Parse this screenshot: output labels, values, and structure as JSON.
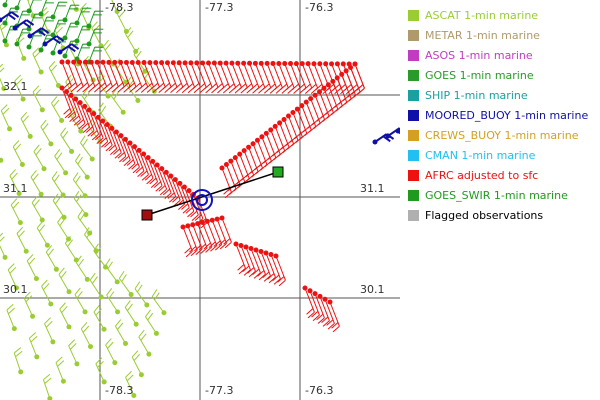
{
  "map": {
    "lon_labels": [
      "-78.3",
      "-77.3",
      "-76.3"
    ],
    "lat_labels": [
      "32.1",
      "31.1",
      "30.1"
    ]
  },
  "legend": [
    {
      "label": "ASCAT 1-min marine",
      "color": "#9acd32"
    },
    {
      "label": "METAR 1-min marine",
      "color": "#b0996b"
    },
    {
      "label": "ASOS 1-min marine",
      "color": "#c03cc0"
    },
    {
      "label": "GOES 1-min marine",
      "color": "#2a9a2a"
    },
    {
      "label": "SHIP 1-min marine",
      "color": "#1aa0a0"
    },
    {
      "label": "MOORED_BUOY 1-min marine",
      "color": "#1010a8"
    },
    {
      "label": "CREWS_BUOY 1-min marine",
      "color": "#d4a020"
    },
    {
      "label": "CMAN 1-min marine",
      "color": "#22c0f0"
    },
    {
      "label": "AFRC adjusted to sfc",
      "color": "#ee1111"
    },
    {
      "label": "GOES_SWIR 1-min marine",
      "color": "#1f9a1f"
    },
    {
      "label": "Flagged observations",
      "color": "#b0b0b0"
    }
  ]
}
